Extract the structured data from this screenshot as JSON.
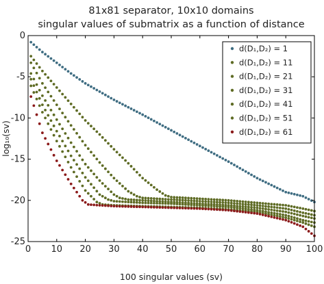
{
  "chart_data": {
    "type": "scatter",
    "title_lines": [
      "81x81 separator, 10x10 domains",
      "singular values of submatrix as a function of distance"
    ],
    "xlabel": "100 singular values (sv)",
    "ylabel": "log₁₀(sv)",
    "xlim": [
      0,
      100
    ],
    "ylim": [
      -25,
      0
    ],
    "xticks": [
      0,
      10,
      20,
      30,
      40,
      50,
      60,
      70,
      80,
      90,
      100
    ],
    "yticks": [
      0,
      -5,
      -10,
      -15,
      -20,
      -25
    ],
    "grid": false,
    "legend_position": "top-right",
    "series": [
      {
        "name": "d(D₁,D₂) = 1",
        "color": "#3f6d82",
        "points": [
          [
            1,
            -0.8
          ],
          [
            5,
            -2
          ],
          [
            10,
            -3.3
          ],
          [
            15,
            -4.6
          ],
          [
            20,
            -5.8
          ],
          [
            25,
            -6.8
          ],
          [
            30,
            -7.8
          ],
          [
            40,
            -9.6
          ],
          [
            50,
            -11.5
          ],
          [
            60,
            -13.4
          ],
          [
            70,
            -15.3
          ],
          [
            80,
            -17.3
          ],
          [
            90,
            -19
          ],
          [
            96,
            -19.5
          ],
          [
            100,
            -20.2
          ]
        ]
      },
      {
        "name": "d(D₁,D₂) = 11",
        "color": "#5e6b24",
        "points": [
          [
            1,
            -2.5
          ],
          [
            5,
            -4.3
          ],
          [
            10,
            -6.3
          ],
          [
            15,
            -8.3
          ],
          [
            20,
            -10.3
          ],
          [
            25,
            -12
          ],
          [
            30,
            -13.8
          ],
          [
            35,
            -15.5
          ],
          [
            40,
            -17.3
          ],
          [
            45,
            -18.7
          ],
          [
            48,
            -19.4
          ],
          [
            50,
            -19.6
          ],
          [
            60,
            -19.8
          ],
          [
            70,
            -20
          ],
          [
            80,
            -20.3
          ],
          [
            90,
            -20.6
          ],
          [
            96,
            -21
          ],
          [
            100,
            -21.3
          ]
        ]
      },
      {
        "name": "d(D₁,D₂) = 21",
        "color": "#5e6b24",
        "points": [
          [
            1,
            -3.3
          ],
          [
            5,
            -5.8
          ],
          [
            10,
            -8.4
          ],
          [
            15,
            -10.9
          ],
          [
            20,
            -13.3
          ],
          [
            25,
            -15.4
          ],
          [
            30,
            -17.3
          ],
          [
            35,
            -18.9
          ],
          [
            38,
            -19.5
          ],
          [
            40,
            -19.7
          ],
          [
            50,
            -19.9
          ],
          [
            60,
            -20.1
          ],
          [
            70,
            -20.3
          ],
          [
            80,
            -20.6
          ],
          [
            90,
            -21
          ],
          [
            96,
            -21.5
          ],
          [
            100,
            -21.8
          ]
        ]
      },
      {
        "name": "d(D₁,D₂) = 31",
        "color": "#5e6b24",
        "points": [
          [
            1,
            -4.6
          ],
          [
            5,
            -7.3
          ],
          [
            10,
            -10.2
          ],
          [
            15,
            -13
          ],
          [
            20,
            -15.6
          ],
          [
            25,
            -17.6
          ],
          [
            30,
            -19.3
          ],
          [
            32,
            -19.7
          ],
          [
            35,
            -19.9
          ],
          [
            40,
            -20
          ],
          [
            50,
            -20.2
          ],
          [
            60,
            -20.4
          ],
          [
            70,
            -20.6
          ],
          [
            80,
            -20.9
          ],
          [
            90,
            -21.4
          ],
          [
            96,
            -21.9
          ],
          [
            100,
            -22.2
          ]
        ]
      },
      {
        "name": "d(D₁,D₂) = 41",
        "color": "#5e6b24",
        "points": [
          [
            1,
            -5.3
          ],
          [
            5,
            -8.4
          ],
          [
            10,
            -11.6
          ],
          [
            15,
            -14.6
          ],
          [
            20,
            -17.2
          ],
          [
            25,
            -19.3
          ],
          [
            28,
            -19.9
          ],
          [
            30,
            -20.1
          ],
          [
            40,
            -20.3
          ],
          [
            50,
            -20.4
          ],
          [
            60,
            -20.6
          ],
          [
            70,
            -20.8
          ],
          [
            80,
            -21.2
          ],
          [
            90,
            -21.8
          ],
          [
            96,
            -22.4
          ],
          [
            100,
            -22.7
          ]
        ]
      },
      {
        "name": "d(D₁,D₂) = 51",
        "color": "#5e6b24",
        "points": [
          [
            1,
            -6.1
          ],
          [
            5,
            -9.3
          ],
          [
            10,
            -12.8
          ],
          [
            15,
            -16
          ],
          [
            20,
            -18.8
          ],
          [
            24,
            -20.2
          ],
          [
            26,
            -20.5
          ],
          [
            30,
            -20.6
          ],
          [
            40,
            -20.7
          ],
          [
            50,
            -20.8
          ],
          [
            60,
            -20.9
          ],
          [
            70,
            -21.1
          ],
          [
            80,
            -21.4
          ],
          [
            90,
            -22.1
          ],
          [
            96,
            -22.7
          ],
          [
            100,
            -23.2
          ]
        ]
      },
      {
        "name": "d(D₁,D₂) = 61",
        "color": "#8b1a1a",
        "points": [
          [
            1,
            -7.4
          ],
          [
            5,
            -11.8
          ],
          [
            10,
            -15.2
          ],
          [
            15,
            -18
          ],
          [
            19,
            -20
          ],
          [
            21,
            -20.5
          ],
          [
            25,
            -20.6
          ],
          [
            30,
            -20.7
          ],
          [
            40,
            -20.8
          ],
          [
            50,
            -20.9
          ],
          [
            60,
            -21
          ],
          [
            70,
            -21.2
          ],
          [
            80,
            -21.6
          ],
          [
            90,
            -22.4
          ],
          [
            96,
            -23.2
          ],
          [
            100,
            -24.3
          ]
        ]
      }
    ]
  }
}
